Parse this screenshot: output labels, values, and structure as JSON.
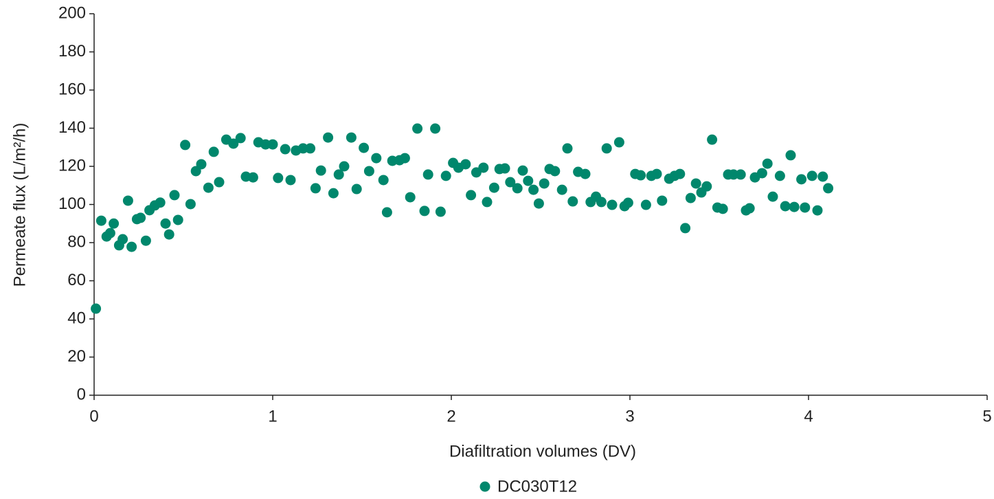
{
  "chart_data": {
    "type": "scatter",
    "x_label": "Diafiltration volumes (DV)",
    "y_label": "Permeate flux (L/m²/h)",
    "xlim": [
      0,
      5
    ],
    "xticks": [
      0,
      1,
      2,
      3,
      4,
      5
    ],
    "ylim": [
      0,
      200
    ],
    "yticks": [
      0,
      20,
      40,
      60,
      80,
      100,
      120,
      140,
      160,
      180,
      200
    ],
    "grid": false,
    "legend": "bottom",
    "series": [
      {
        "name": "DC030T12",
        "color": "#00876c",
        "x": [
          0.01,
          0.04,
          0.07,
          0.09,
          0.11,
          0.14,
          0.16,
          0.19,
          0.21,
          0.24,
          0.26,
          0.29,
          0.31,
          0.34,
          0.37,
          0.4,
          0.42,
          0.45,
          0.47,
          0.51,
          0.54,
          0.57,
          0.6,
          0.64,
          0.67,
          0.7,
          0.74,
          0.78,
          0.82,
          0.85,
          0.89,
          0.92,
          0.96,
          1.0,
          1.03,
          1.07,
          1.1,
          1.13,
          1.17,
          1.21,
          1.24,
          1.27,
          1.31,
          1.34,
          1.37,
          1.4,
          1.44,
          1.47,
          1.51,
          1.54,
          1.58,
          1.62,
          1.64,
          1.67,
          1.71,
          1.74,
          1.77,
          1.81,
          1.85,
          1.87,
          1.91,
          1.94,
          1.97,
          2.01,
          2.04,
          2.08,
          2.11,
          2.14,
          2.18,
          2.2,
          2.24,
          2.27,
          2.3,
          2.33,
          2.37,
          2.4,
          2.43,
          2.46,
          2.49,
          2.52,
          2.55,
          2.58,
          2.62,
          2.65,
          2.68,
          2.71,
          2.75,
          2.78,
          2.81,
          2.84,
          2.87,
          2.9,
          2.94,
          2.97,
          2.99,
          3.03,
          3.06,
          3.09,
          3.12,
          3.15,
          3.18,
          3.22,
          3.25,
          3.28,
          3.31,
          3.34,
          3.37,
          3.4,
          3.43,
          3.46,
          3.49,
          3.52,
          3.55,
          3.58,
          3.62,
          3.65,
          3.67,
          3.7,
          3.74,
          3.77,
          3.8,
          3.84,
          3.87,
          3.9,
          3.92,
          3.96,
          3.98,
          4.02,
          4.05,
          4.08,
          4.11
        ],
        "values": [
          45.4,
          91.5,
          83.2,
          85.0,
          90.0,
          78.6,
          81.8,
          102.0,
          77.8,
          92.3,
          93.0,
          81.0,
          97.0,
          99.5,
          101.0,
          90.0,
          84.3,
          104.9,
          91.9,
          131.2,
          100.2,
          117.5,
          121.1,
          108.8,
          127.6,
          111.7,
          134.0,
          131.9,
          134.8,
          114.6,
          114.2,
          132.6,
          131.5,
          131.5,
          113.9,
          129.0,
          112.8,
          128.3,
          129.4,
          129.4,
          108.5,
          117.8,
          135.1,
          105.9,
          115.7,
          120.0,
          135.1,
          108.1,
          129.7,
          117.5,
          124.3,
          112.8,
          95.9,
          122.9,
          123.2,
          124.3,
          103.8,
          139.8,
          96.6,
          115.7,
          139.8,
          96.2,
          115.0,
          121.8,
          119.3,
          121.1,
          104.9,
          116.8,
          119.3,
          101.3,
          108.8,
          118.6,
          118.9,
          111.7,
          108.5,
          117.8,
          112.4,
          107.7,
          100.5,
          111.0,
          118.6,
          117.5,
          107.7,
          129.4,
          101.6,
          117.1,
          116.0,
          101.3,
          104.1,
          101.3,
          129.4,
          99.8,
          132.6,
          99.1,
          100.9,
          116.0,
          115.3,
          99.8,
          115.0,
          116.0,
          102.0,
          113.5,
          115.0,
          116.0,
          87.6,
          103.4,
          111.0,
          106.3,
          109.5,
          134.0,
          98.4,
          97.7,
          115.7,
          115.7,
          115.7,
          96.9,
          98.0,
          114.2,
          116.4,
          121.4,
          104.1,
          115.0,
          99.1,
          125.8,
          98.7,
          113.2,
          98.4,
          115.0,
          96.9,
          114.6,
          108.5
        ]
      }
    ]
  }
}
